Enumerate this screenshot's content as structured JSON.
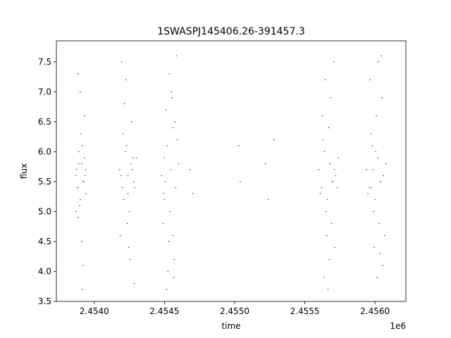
{
  "chart_data": {
    "type": "scatter",
    "title": "1SWASPJ145406.26-391457.3",
    "xlabel": "time",
    "ylabel": "flux",
    "x_offset_label": "1e6",
    "xlim": [
      2453730,
      2456220
    ],
    "ylim": [
      3.5,
      7.85
    ],
    "x_ticks": [
      2454000,
      2454500,
      2455000,
      2455500,
      2456000
    ],
    "x_tick_labels": [
      "2.4540",
      "2.4545",
      "2.4550",
      "2.4555",
      "2.4560"
    ],
    "y_ticks": [
      3.5,
      4.0,
      4.5,
      5.0,
      5.5,
      6.0,
      6.5,
      7.0,
      7.5
    ],
    "y_tick_labels": [
      "3.5",
      "4.0",
      "4.5",
      "5.0",
      "5.5",
      "6.0",
      "6.5",
      "7.0",
      "7.5"
    ],
    "grid": false,
    "legend": "none",
    "marker_color": "#1f77b4",
    "series": [
      {
        "x": [
          2453870,
          2453880,
          2453890,
          2453900,
          2453910,
          2453920,
          2453930,
          2453940,
          2453875,
          2453895,
          2453915,
          2453935,
          2453885,
          2453905,
          2453925,
          2453870,
          2453890,
          2453910,
          2453930,
          2453880,
          2453900,
          2453920,
          2453940,
          2453885,
          2453915,
          2454180,
          2454200,
          2454220,
          2454240,
          2454260,
          2454280,
          2454300,
          2454190,
          2454210,
          2454230,
          2454250,
          2454270,
          2454290,
          2454205,
          2454235,
          2454265,
          2454185,
          2454215,
          2454245,
          2454275,
          2454225,
          2454255,
          2454195,
          2454285,
          2454240,
          2454480,
          2454500,
          2454520,
          2454540,
          2454560,
          2454580,
          2454600,
          2454490,
          2454510,
          2454530,
          2454550,
          2454570,
          2454590,
          2454505,
          2454535,
          2454565,
          2454585,
          2454495,
          2454525,
          2454555,
          2454545,
          2454515,
          2454575,
          2454500,
          2454560,
          2454680,
          2454700,
          2455030,
          2455040,
          2455220,
          2455240,
          2455280,
          2455600,
          2455620,
          2455640,
          2455660,
          2455680,
          2455700,
          2455720,
          2455740,
          2455610,
          2455630,
          2455650,
          2455670,
          2455690,
          2455710,
          2455730,
          2455625,
          2455655,
          2455685,
          2455715,
          2455645,
          2455675,
          2455705,
          2455635,
          2455695,
          2455665,
          2455940,
          2455960,
          2455980,
          2456000,
          2456020,
          2456040,
          2456060,
          2456080,
          2455950,
          2455970,
          2455990,
          2456010,
          2456030,
          2456050,
          2456070,
          2455965,
          2455995,
          2456025,
          2456055,
          2455985,
          2456015,
          2456045,
          2455975,
          2456035,
          2456005
        ],
        "y": [
          5.6,
          5.4,
          6.0,
          5.2,
          5.8,
          5.5,
          5.9,
          5.3,
          5.7,
          5.1,
          6.1,
          5.6,
          4.9,
          6.3,
          5.5,
          5.0,
          5.8,
          4.5,
          6.6,
          5.4,
          7.0,
          4.1,
          5.7,
          7.3,
          3.7,
          5.7,
          5.4,
          6.0,
          5.3,
          5.8,
          5.5,
          5.9,
          5.6,
          5.2,
          6.1,
          5.0,
          5.7,
          5.4,
          6.3,
          4.8,
          6.5,
          4.6,
          6.8,
          4.4,
          5.9,
          7.2,
          4.2,
          7.5,
          3.8,
          5.6,
          5.6,
          5.2,
          6.1,
          5.0,
          6.4,
          5.4,
          5.8,
          4.8,
          6.7,
          4.5,
          7.0,
          4.2,
          6.2,
          5.5,
          7.3,
          3.9,
          7.6,
          5.3,
          4.0,
          6.9,
          5.7,
          3.7,
          6.5,
          5.9,
          4.6,
          5.7,
          5.3,
          6.1,
          5.5,
          5.8,
          5.2,
          6.2,
          5.7,
          5.4,
          6.0,
          5.2,
          5.8,
          5.5,
          5.6,
          5.9,
          5.3,
          6.2,
          5.0,
          6.4,
          4.8,
          5.7,
          5.4,
          6.6,
          4.6,
          6.9,
          4.4,
          7.2,
          4.2,
          7.5,
          3.9,
          5.5,
          3.7,
          5.7,
          5.4,
          6.1,
          5.2,
          5.9,
          5.5,
          5.6,
          5.8,
          5.3,
          6.3,
          5.0,
          6.6,
          4.8,
          6.9,
          4.6,
          7.2,
          4.4,
          7.5,
          4.1,
          5.7,
          3.9,
          7.6,
          5.4,
          4.3,
          6.0
        ]
      }
    ]
  }
}
